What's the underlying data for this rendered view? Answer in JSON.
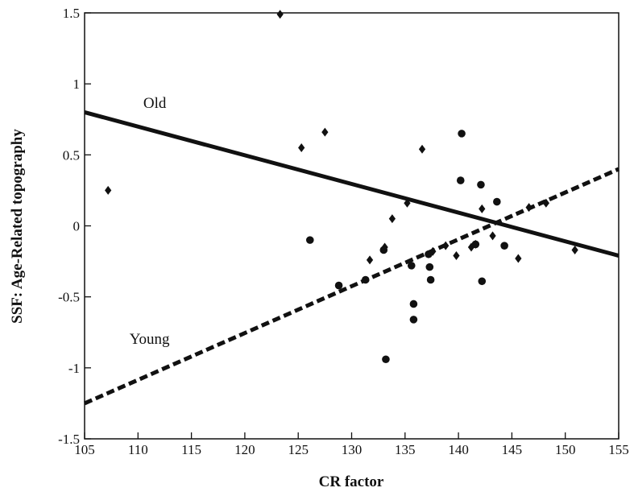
{
  "chart_data": {
    "type": "scatter",
    "xlabel": "CR factor",
    "ylabel": "SSF: Age-Related topography",
    "xlim": [
      105,
      155
    ],
    "ylim": [
      -1.5,
      1.5
    ],
    "x_ticks": [
      105,
      110,
      115,
      120,
      125,
      130,
      135,
      140,
      145,
      150,
      155
    ],
    "y_ticks": [
      1.5,
      1,
      0.5,
      0,
      -0.5,
      -1,
      -1.5
    ],
    "x_tick_labels": [
      "105",
      "110",
      "115",
      "120",
      "125",
      "130",
      "135",
      "140",
      "145",
      "150",
      "155"
    ],
    "y_tick_labels": [
      "1.5",
      "1",
      "0.5",
      "0",
      "-0.5",
      "-1",
      "-1.5"
    ],
    "grid": false,
    "series": [
      {
        "name": "Old",
        "marker": "diamond",
        "points": [
          [
            107.2,
            0.25
          ],
          [
            123.3,
            1.49
          ],
          [
            125.3,
            0.55
          ],
          [
            127.5,
            0.66
          ],
          [
            131.7,
            -0.24
          ],
          [
            133.1,
            -0.15
          ],
          [
            133.8,
            0.05
          ],
          [
            135.2,
            0.16
          ],
          [
            136.6,
            0.54
          ],
          [
            137.6,
            -0.18
          ],
          [
            138.8,
            -0.14
          ],
          [
            139.8,
            -0.21
          ],
          [
            141.2,
            -0.15
          ],
          [
            141.6,
            -0.13
          ],
          [
            142.2,
            0.12
          ],
          [
            143.2,
            -0.07
          ],
          [
            145.6,
            -0.23
          ],
          [
            146.6,
            0.13
          ],
          [
            148.2,
            0.16
          ],
          [
            150.9,
            -0.17
          ]
        ],
        "fit": {
          "points": [
            [
              105,
              0.8
            ],
            [
              155,
              -0.21
            ]
          ],
          "style": "solid"
        }
      },
      {
        "name": "Young",
        "marker": "circle",
        "points": [
          [
            126.1,
            -0.1
          ],
          [
            128.8,
            -0.42
          ],
          [
            131.3,
            -0.38
          ],
          [
            133.0,
            -0.17
          ],
          [
            133.2,
            -0.94
          ],
          [
            135.6,
            -0.28
          ],
          [
            135.8,
            -0.55
          ],
          [
            135.8,
            -0.66
          ],
          [
            137.2,
            -0.2
          ],
          [
            137.3,
            -0.29
          ],
          [
            137.4,
            -0.38
          ],
          [
            140.2,
            0.32
          ],
          [
            140.3,
            0.65
          ],
          [
            141.6,
            -0.13
          ],
          [
            142.1,
            0.29
          ],
          [
            142.2,
            -0.39
          ],
          [
            143.6,
            0.17
          ],
          [
            144.3,
            -0.14
          ]
        ],
        "fit": {
          "points": [
            [
              105,
              -1.25
            ],
            [
              155,
              0.4
            ]
          ],
          "style": "dashed"
        }
      }
    ]
  }
}
